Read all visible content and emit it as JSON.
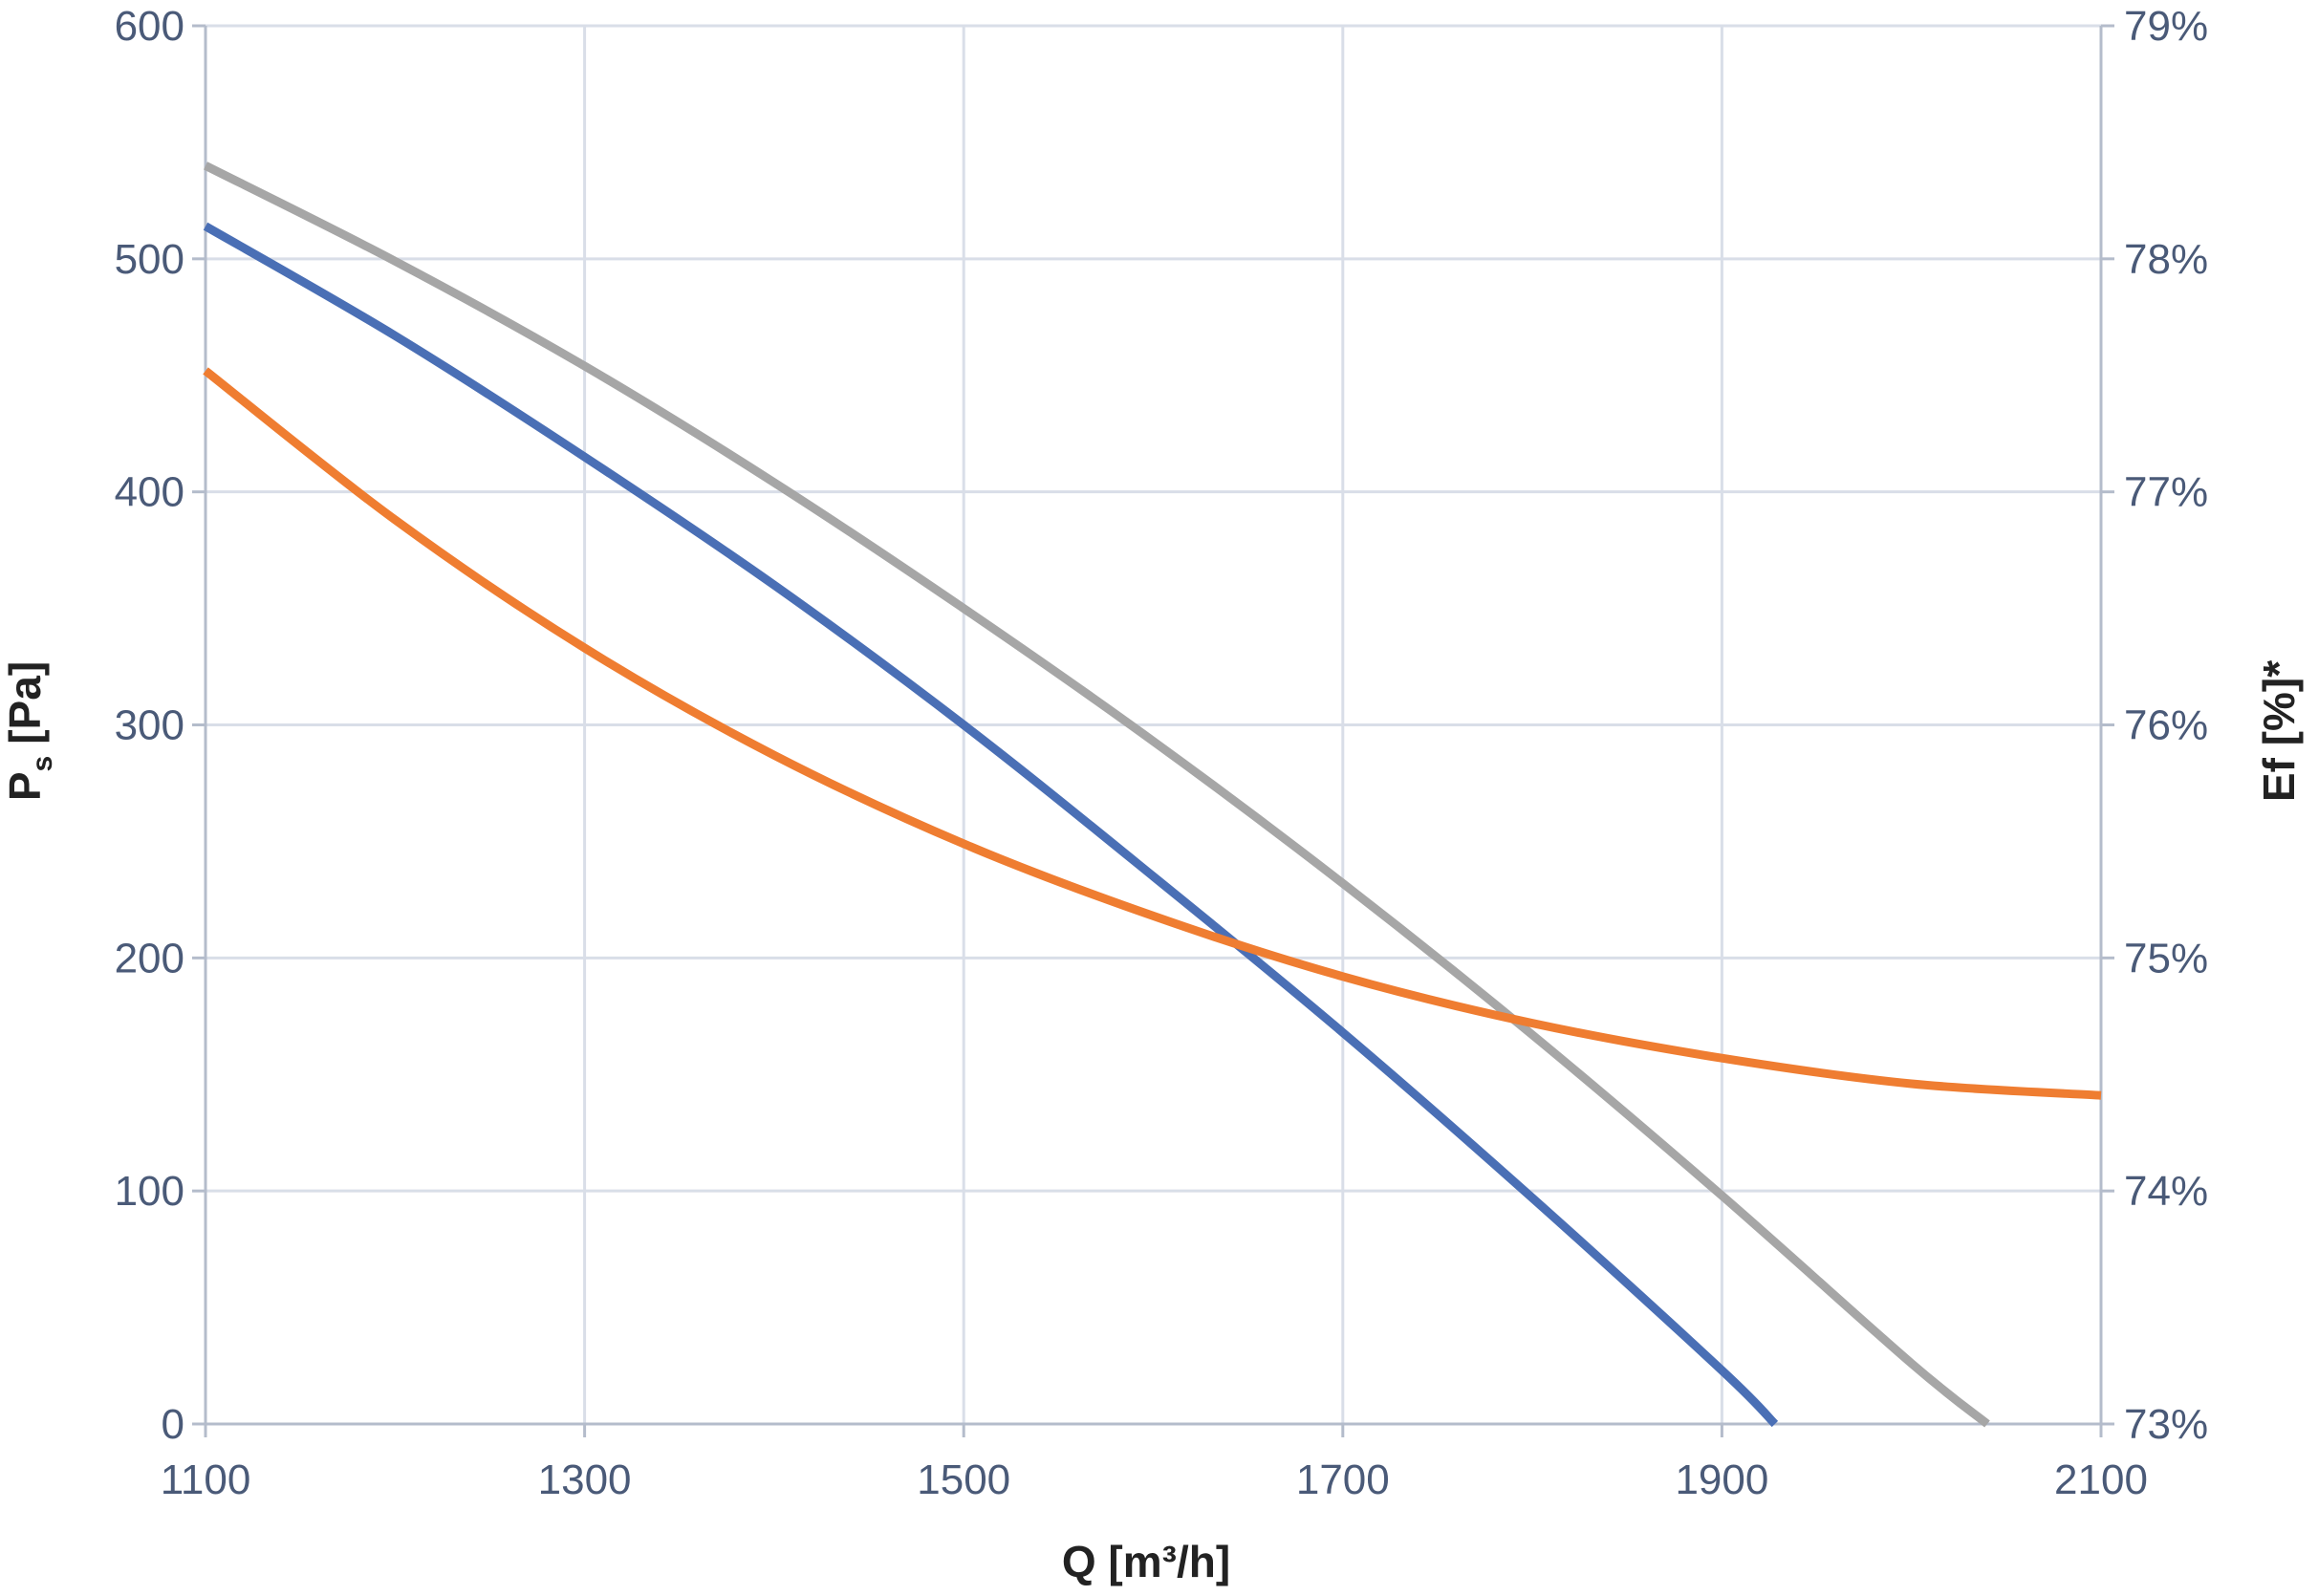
{
  "chart_data": {
    "type": "line",
    "title": "",
    "xlabel": "Q [m³/h]",
    "ylabel_main": "P",
    "ylabel_sub": "s",
    "ylabel_unit": "[Pa]",
    "y2label": "Ef [%]*",
    "xlim": [
      1100,
      2100
    ],
    "ylim": [
      0,
      600
    ],
    "y2lim": [
      73,
      79
    ],
    "x_ticks": [
      "1100",
      "1300",
      "1500",
      "1700",
      "1900",
      "2100"
    ],
    "y_ticks": [
      "0",
      "100",
      "200",
      "300",
      "400",
      "500",
      "600"
    ],
    "y2_ticks": [
      "73%",
      "74%",
      "75%",
      "76%",
      "77%",
      "78%",
      "79%"
    ],
    "grid": true,
    "legend": "none",
    "colors": {
      "blue": "#4a6fb5",
      "gray": "#a6a6a6",
      "orange": "#ef7d31",
      "grid": "#d9dee8",
      "axis": "#b4bccb"
    },
    "series": [
      {
        "axis": "left",
        "color": "#4a6fb5",
        "x": [
          1100,
          1200,
          1300,
          1400,
          1500,
          1600,
          1700,
          1800,
          1900,
          1928
        ],
        "y": [
          514,
          467,
          415,
          360,
          300,
          235,
          168,
          97,
          23,
          0
        ]
      },
      {
        "axis": "left",
        "color": "#a6a6a6",
        "x": [
          1100,
          1200,
          1300,
          1400,
          1500,
          1600,
          1700,
          1800,
          1900,
          2000,
          2040
        ],
        "y": [
          540,
          499,
          454,
          404,
          350,
          293,
          232,
          167,
          98,
          26,
          0
        ]
      },
      {
        "axis": "right",
        "color": "#ef7d31",
        "x": [
          1100,
          1200,
          1300,
          1400,
          1500,
          1600,
          1700,
          1800,
          1900,
          2000,
          2100
        ],
        "y": [
          77.52,
          76.88,
          76.33,
          75.87,
          75.49,
          75.18,
          74.92,
          74.72,
          74.57,
          74.46,
          74.41
        ]
      }
    ]
  }
}
